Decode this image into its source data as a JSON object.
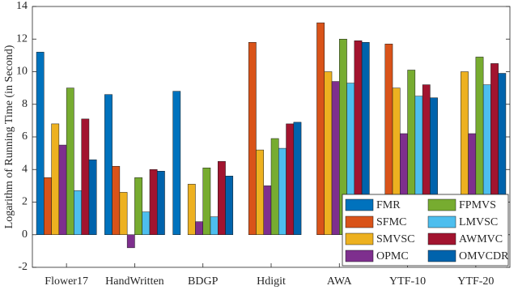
{
  "chart_data": {
    "type": "bar",
    "y_label": "Logarithm of Running Time (in Second)",
    "categories": [
      "Flower17",
      "HandWritten",
      "BDGP",
      "Hdigit",
      "AWA",
      "YTF-10",
      "YTF-20"
    ],
    "series": [
      {
        "name": "FMR",
        "color": "#0072bd",
        "values": [
          11.2,
          8.6,
          8.8,
          null,
          null,
          null,
          null
        ]
      },
      {
        "name": "SFMC",
        "color": "#d95319",
        "values": [
          3.5,
          4.2,
          null,
          11.8,
          13.0,
          11.7,
          null
        ]
      },
      {
        "name": "SMVSC",
        "color": "#edb120",
        "values": [
          6.8,
          2.6,
          3.1,
          5.2,
          10.0,
          9.0,
          10.0
        ]
      },
      {
        "name": "OPMC",
        "color": "#7e2f8e",
        "values": [
          5.5,
          -0.8,
          0.8,
          3.0,
          9.4,
          6.2,
          6.2
        ]
      },
      {
        "name": "FPMVS",
        "color": "#77ac30",
        "values": [
          9.0,
          3.5,
          4.1,
          5.9,
          12.0,
          10.1,
          10.9
        ]
      },
      {
        "name": "LMVSC",
        "color": "#4dbeee",
        "values": [
          2.7,
          1.4,
          1.1,
          5.3,
          9.3,
          8.5,
          9.2
        ]
      },
      {
        "name": "AWMVC",
        "color": "#a2142f",
        "values": [
          7.1,
          4.0,
          4.5,
          6.8,
          11.9,
          9.2,
          10.5
        ]
      },
      {
        "name": "OMVCDR",
        "color": "#0063ac",
        "values": [
          4.6,
          3.9,
          3.6,
          6.9,
          11.8,
          8.4,
          9.9
        ]
      }
    ],
    "ylim": [
      -2,
      14
    ],
    "yticks": [
      -2,
      0,
      2,
      4,
      6,
      8,
      10,
      12,
      14
    ],
    "legend": "lower right"
  }
}
